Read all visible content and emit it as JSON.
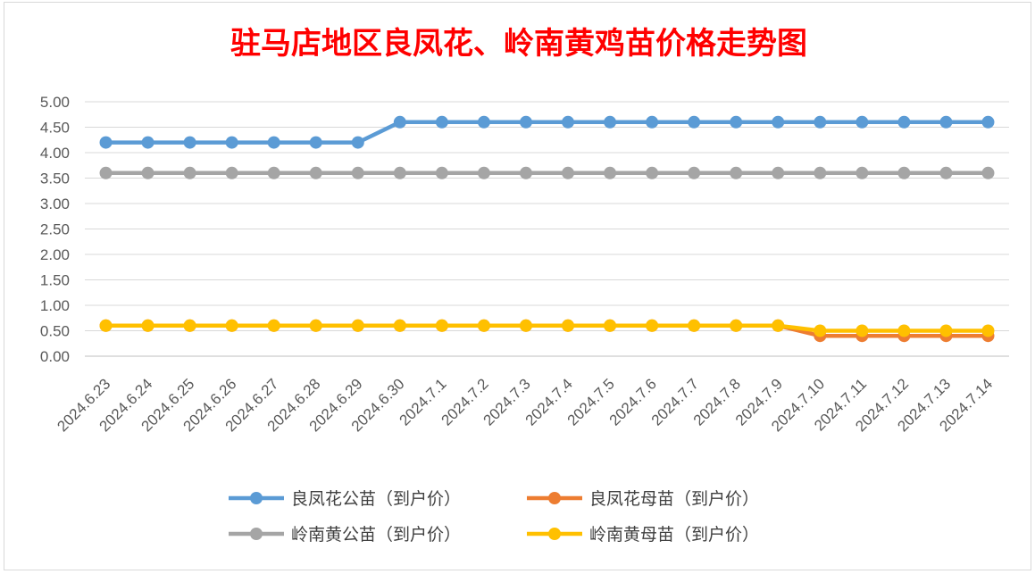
{
  "chart_data": {
    "type": "line",
    "title": "驻马店地区良凤花、岭南黄鸡苗价格走势图",
    "xlabel": "",
    "ylabel": "",
    "ylim": [
      0,
      5
    ],
    "yticks": [
      "0.00",
      "0.50",
      "1.00",
      "1.50",
      "2.00",
      "2.50",
      "3.00",
      "3.50",
      "4.00",
      "4.50",
      "5.00"
    ],
    "grid": true,
    "legend_position": "bottom",
    "categories": [
      "2024.6.23",
      "2024.6.24",
      "2024.6.25",
      "2024.6.26",
      "2024.6.27",
      "2024.6.28",
      "2024.6.29",
      "2024.6.30",
      "2024.7.1",
      "2024.7.2",
      "2024.7.3",
      "2024.7.4",
      "2024.7.5",
      "2024.7.6",
      "2024.7.7",
      "2024.7.8",
      "2024.7.9",
      "2024.7.10",
      "2024.7.11",
      "2024.7.12",
      "2024.7.13",
      "2024.7.14"
    ],
    "series": [
      {
        "name": "良凤花公苗（到户价）",
        "color": "#5b9bd5",
        "values": [
          4.2,
          4.2,
          4.2,
          4.2,
          4.2,
          4.2,
          4.2,
          4.6,
          4.6,
          4.6,
          4.6,
          4.6,
          4.6,
          4.6,
          4.6,
          4.6,
          4.6,
          4.6,
          4.6,
          4.6,
          4.6,
          4.6
        ]
      },
      {
        "name": "良凤花母苗（到户价）",
        "color": "#ed7d31",
        "values": [
          0.6,
          0.6,
          0.6,
          0.6,
          0.6,
          0.6,
          0.6,
          0.6,
          0.6,
          0.6,
          0.6,
          0.6,
          0.6,
          0.6,
          0.6,
          0.6,
          0.6,
          0.4,
          0.4,
          0.4,
          0.4,
          0.4
        ]
      },
      {
        "name": "岭南黄公苗（到户价）",
        "color": "#a5a5a5",
        "values": [
          3.6,
          3.6,
          3.6,
          3.6,
          3.6,
          3.6,
          3.6,
          3.6,
          3.6,
          3.6,
          3.6,
          3.6,
          3.6,
          3.6,
          3.6,
          3.6,
          3.6,
          3.6,
          3.6,
          3.6,
          3.6,
          3.6
        ]
      },
      {
        "name": "岭南黄母苗（到户价）",
        "color": "#ffc000",
        "values": [
          0.6,
          0.6,
          0.6,
          0.6,
          0.6,
          0.6,
          0.6,
          0.6,
          0.6,
          0.6,
          0.6,
          0.6,
          0.6,
          0.6,
          0.6,
          0.6,
          0.6,
          0.5,
          0.5,
          0.5,
          0.5,
          0.5
        ]
      }
    ]
  }
}
